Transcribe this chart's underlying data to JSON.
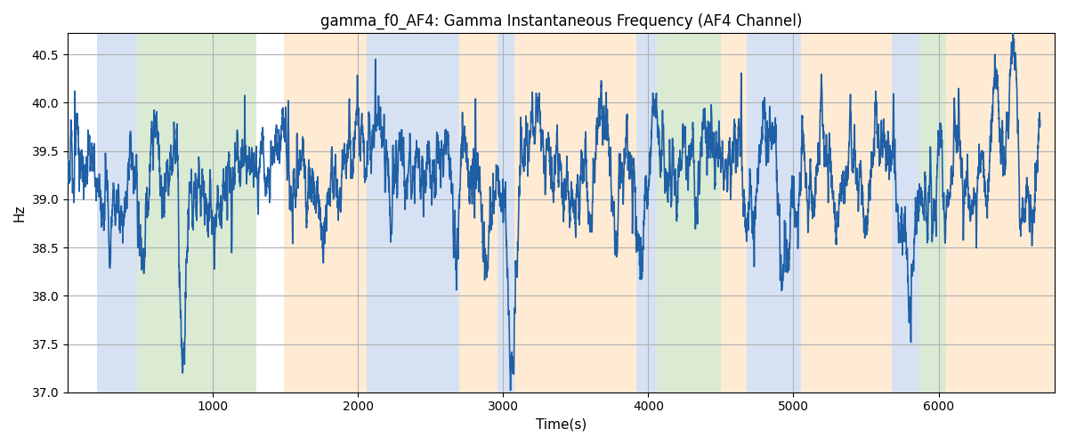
{
  "title": "gamma_f0_AF4: Gamma Instantaneous Frequency (AF4 Channel)",
  "xlabel": "Time(s)",
  "ylabel": "Hz",
  "ylim": [
    37.0,
    40.72
  ],
  "yticks": [
    37.0,
    37.5,
    38.0,
    38.5,
    39.0,
    39.5,
    40.0,
    40.5
  ],
  "xlim": [
    0,
    6800
  ],
  "xticks": [
    1000,
    2000,
    3000,
    4000,
    5000,
    6000
  ],
  "line_color": "#1f5fa6",
  "line_width": 1.2,
  "background_color": "#ffffff",
  "grid_color": "#b0b0b0",
  "bands": [
    {
      "start": 200,
      "end": 480,
      "color": "#aec6e8",
      "alpha": 0.5
    },
    {
      "start": 480,
      "end": 1300,
      "color": "#b6d7a8",
      "alpha": 0.5
    },
    {
      "start": 1300,
      "end": 1490,
      "color": "#ffffff",
      "alpha": 0.0
    },
    {
      "start": 1490,
      "end": 2060,
      "color": "#ffd9a8",
      "alpha": 0.5
    },
    {
      "start": 2060,
      "end": 2700,
      "color": "#aec6e8",
      "alpha": 0.5
    },
    {
      "start": 2700,
      "end": 2960,
      "color": "#ffd9a8",
      "alpha": 0.5
    },
    {
      "start": 2960,
      "end": 3080,
      "color": "#aec6e8",
      "alpha": 0.5
    },
    {
      "start": 3080,
      "end": 3920,
      "color": "#ffd9a8",
      "alpha": 0.5
    },
    {
      "start": 3920,
      "end": 4060,
      "color": "#aec6e8",
      "alpha": 0.5
    },
    {
      "start": 4060,
      "end": 4500,
      "color": "#b6d7a8",
      "alpha": 0.5
    },
    {
      "start": 4500,
      "end": 4680,
      "color": "#ffd9a8",
      "alpha": 0.5
    },
    {
      "start": 4680,
      "end": 5050,
      "color": "#aec6e8",
      "alpha": 0.5
    },
    {
      "start": 5050,
      "end": 5680,
      "color": "#ffd9a8",
      "alpha": 0.5
    },
    {
      "start": 5680,
      "end": 5870,
      "color": "#aec6e8",
      "alpha": 0.5
    },
    {
      "start": 5870,
      "end": 6050,
      "color": "#b6d7a8",
      "alpha": 0.5
    },
    {
      "start": 6050,
      "end": 6800,
      "color": "#ffd9a8",
      "alpha": 0.5
    }
  ],
  "seed": 123,
  "base_freq": 39.25,
  "dt": 1.0,
  "total_time": 6700
}
